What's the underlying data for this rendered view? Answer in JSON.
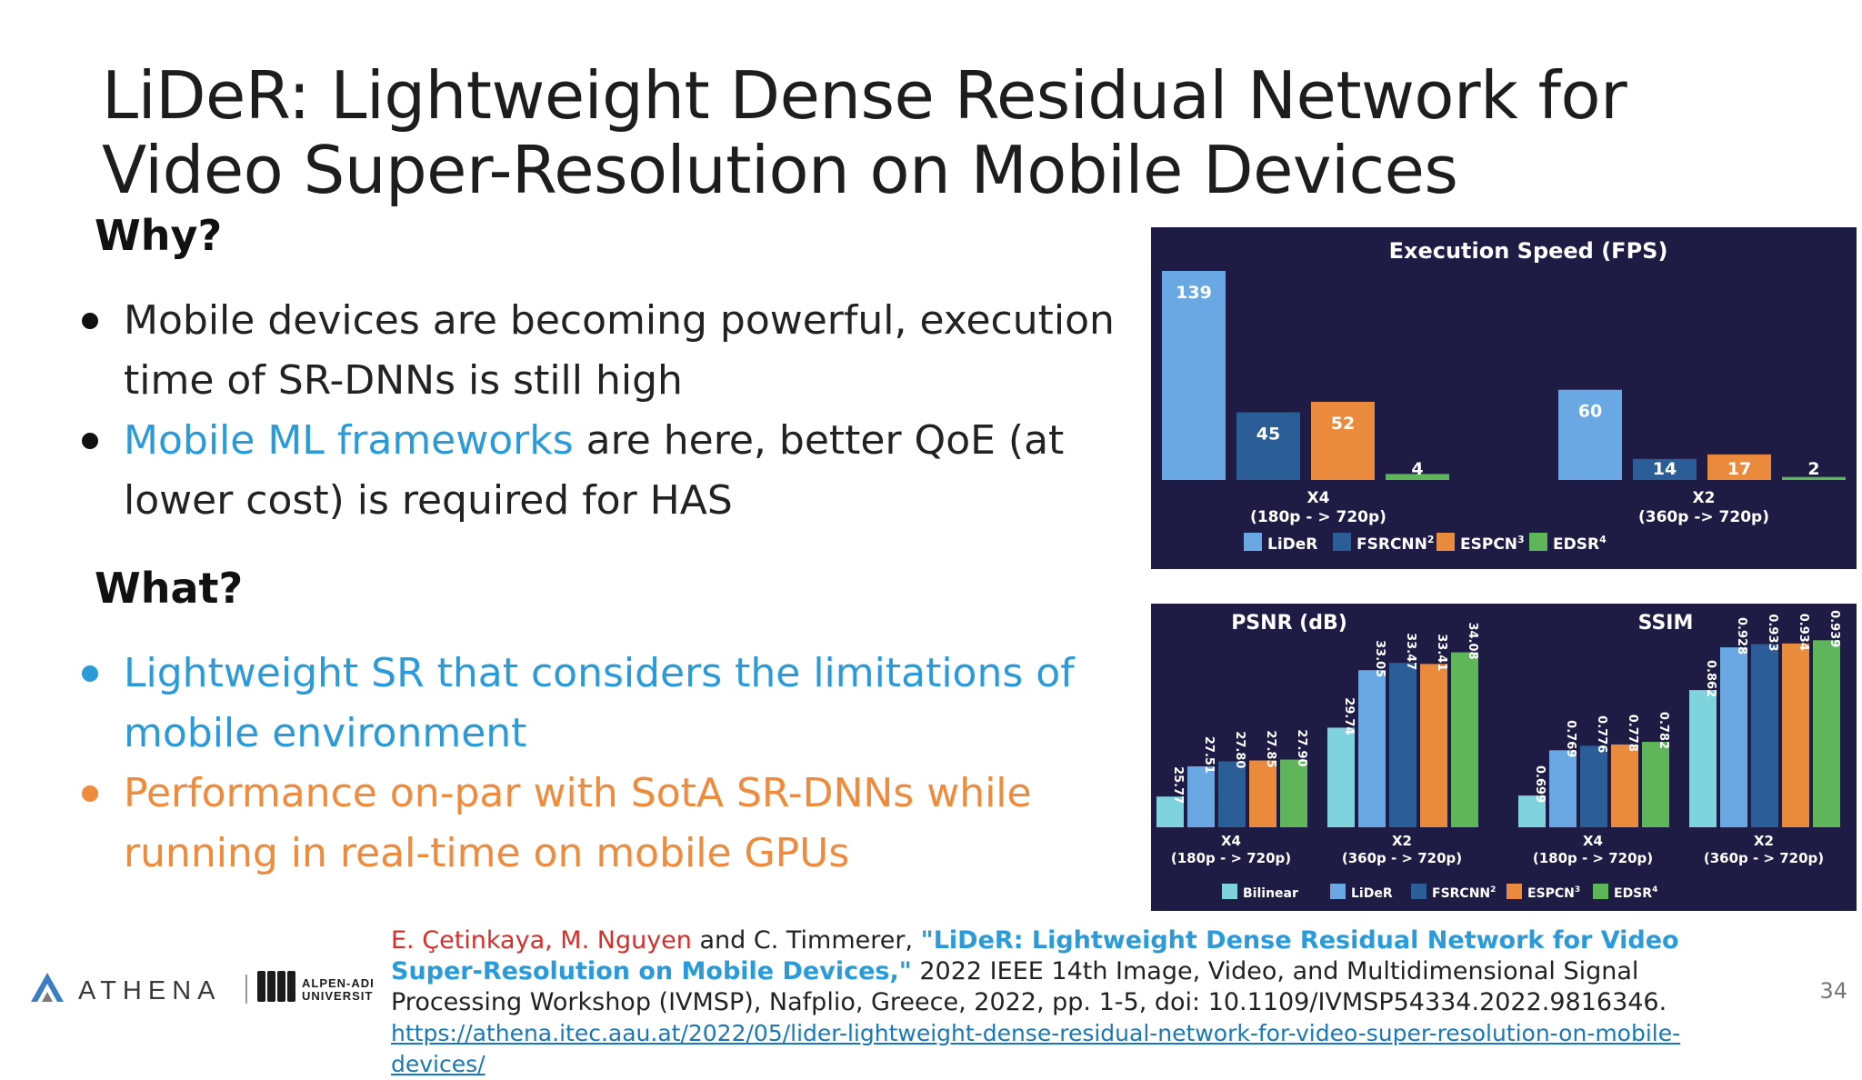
{
  "title": {
    "line1": "LiDeR: Lightweight Dense Residual Network for",
    "line2": "Video Super-Resolution on Mobile Devices"
  },
  "why": {
    "heading": "Why?",
    "bullet1": "Mobile devices are becoming powerful, execution time of SR-DNNs is still high",
    "bullet2_highlight": "Mobile ML frameworks",
    "bullet2_rest": " are here, better QoE (at lower cost) is required for HAS"
  },
  "what": {
    "heading": "What?",
    "bullet1": "Lightweight SR that considers the limitations of mobile environment",
    "bullet2": "Performance on-par with SotA SR-DNNs while running in real-time on mobile GPUs"
  },
  "colors": {
    "panel_bg": "#1e1b45",
    "lider": "#6aa8e4",
    "fsrcnn": "#2b5d97",
    "espcn": "#ea8a3d",
    "edsr": "#5fb65a",
    "bilinear": "#7fd3dd"
  },
  "chart_data": [
    {
      "type": "bar",
      "title": "Execution Speed (FPS)",
      "categories": [
        "X4\n(180p - > 720p)",
        "X2\n(360p -> 720p)"
      ],
      "category_line1": [
        "X4",
        "X2"
      ],
      "category_line2": [
        "(180p - > 720p)",
        "(360p -> 720p)"
      ],
      "series": [
        {
          "name": "LiDeR",
          "sup": "",
          "color": "#6aa8e4",
          "values": [
            139,
            60
          ]
        },
        {
          "name": "FSRCNN",
          "sup": "2",
          "color": "#2b5d97",
          "values": [
            45,
            14
          ]
        },
        {
          "name": "ESPCN",
          "sup": "3",
          "color": "#ea8a3d",
          "values": [
            52,
            17
          ]
        },
        {
          "name": "EDSR",
          "sup": "4",
          "color": "#5fb65a",
          "values": [
            4,
            2
          ]
        }
      ],
      "legend": "bottom"
    },
    {
      "type": "bar",
      "title": "PSNR (dB)",
      "categories": [
        "X4\n(180p - > 720p)",
        "X2\n(360p - > 720p)"
      ],
      "category_line1": [
        "X4",
        "X2"
      ],
      "category_line2": [
        "(180p - > 720p)",
        "(360p - > 720p)"
      ],
      "series": [
        {
          "name": "Bilinear",
          "values": [
            25.77,
            29.74
          ]
        },
        {
          "name": "LiDeR",
          "values": [
            27.51,
            33.05
          ]
        },
        {
          "name": "FSRCNN",
          "values": [
            27.8,
            33.47
          ]
        },
        {
          "name": "ESPCN",
          "values": [
            27.85,
            33.41
          ]
        },
        {
          "name": "EDSR",
          "values": [
            27.9,
            34.08
          ]
        }
      ],
      "value_labels": [
        [
          "25.77",
          "27.51",
          "27.80",
          "27.85",
          "27.90"
        ],
        [
          "29.74",
          "33.05",
          "33.47",
          "33.41",
          "34.08"
        ]
      ],
      "ylim": [
        24,
        35
      ]
    },
    {
      "type": "bar",
      "title": "SSIM",
      "categories": [
        "X4\n(180p - > 720p)",
        "X2\n(360p - > 720p)"
      ],
      "category_line1": [
        "X4",
        "X2"
      ],
      "category_line2": [
        "(180p - > 720p)",
        "(360p - > 720p)"
      ],
      "series": [
        {
          "name": "Bilinear",
          "values": [
            0.699,
            0.862
          ]
        },
        {
          "name": "LiDeR",
          "values": [
            0.769,
            0.928
          ]
        },
        {
          "name": "FSRCNN",
          "values": [
            0.776,
            0.933
          ]
        },
        {
          "name": "ESPCN",
          "values": [
            0.778,
            0.934
          ]
        },
        {
          "name": "EDSR",
          "values": [
            0.782,
            0.939
          ]
        }
      ],
      "value_labels": [
        [
          "0.699",
          "0.769",
          "0.776",
          "0.778",
          "0.782"
        ],
        [
          "0.862",
          "0.928",
          "0.933",
          "0.934",
          "0.939"
        ]
      ],
      "ylim": [
        0.65,
        0.945
      ]
    }
  ],
  "quality_legend": [
    {
      "name": "Bilinear",
      "sup": "",
      "color": "#7fd3dd"
    },
    {
      "name": "LiDeR",
      "sup": "",
      "color": "#6aa8e4"
    },
    {
      "name": "FSRCNN",
      "sup": "2",
      "color": "#2b5d97"
    },
    {
      "name": "ESPCN",
      "sup": "3",
      "color": "#ea8a3d"
    },
    {
      "name": "EDSR",
      "sup": "4",
      "color": "#5fb65a"
    }
  ],
  "logos": {
    "athena": "ATHENA",
    "uni_line1": "ALPEN-ADRIA",
    "uni_line2": "UNIVERSITÄT"
  },
  "citation": {
    "authors_red": "E. Çetinkaya, M. Nguyen",
    "authors_rest": " and C. Timmerer, ",
    "paper_title": "\"LiDeR: Lightweight Dense Residual Network for Video Super-Resolution on Mobile Devices,\"",
    "venue": " 2022 IEEE 14th Image, Video, and Multidimensional Signal Processing Workshop (IVMSP), Nafplio, Greece, 2022, pp. 1-5, doi: 10.1109/IVMSP54334.2022.9816346.",
    "link": "https://athena.itec.aau.at/2022/05/lider-lightweight-dense-residual-network-for-video-super-resolution-on-mobile-devices/"
  },
  "page_number": "34"
}
